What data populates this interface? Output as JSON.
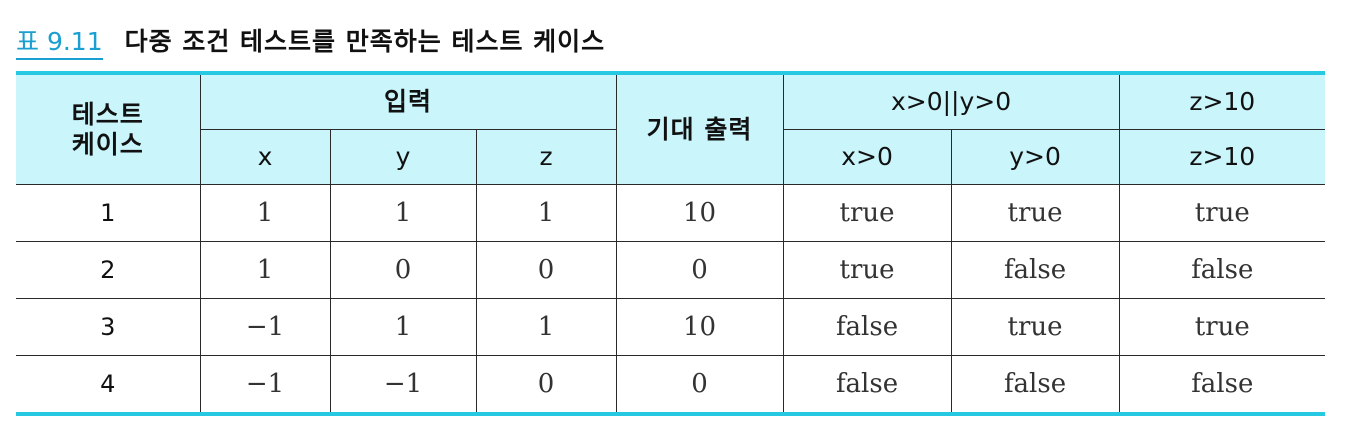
{
  "caption": {
    "label": "표 9.11",
    "title": "다중 조건 테스트를 만족하는 테스트 케이스"
  },
  "header": {
    "test_case_line1": "테스트",
    "test_case_line2": "케이스",
    "input": "입력",
    "input_x": "x",
    "input_y": "y",
    "input_z": "z",
    "expected_output": "기대 출력",
    "condition_or": "x>0||y>0",
    "condition_x": "x>0",
    "condition_y": "y>0",
    "condition_z_group": "z>10",
    "condition_z": "z>10"
  },
  "rows": [
    {
      "case": "1",
      "x": "1",
      "y": "1",
      "z": "1",
      "expected": "10",
      "cx": "true",
      "cy": "true",
      "cz": "true"
    },
    {
      "case": "2",
      "x": "1",
      "y": "0",
      "z": "0",
      "expected": "0",
      "cx": "true",
      "cy": "false",
      "cz": "false"
    },
    {
      "case": "3",
      "x": "−1",
      "y": "1",
      "z": "1",
      "expected": "10",
      "cx": "false",
      "cy": "true",
      "cz": "true"
    },
    {
      "case": "4",
      "x": "−1",
      "y": "−1",
      "z": "0",
      "expected": "0",
      "cx": "false",
      "cy": "false",
      "cz": "false"
    }
  ],
  "colors": {
    "accent": "#1a9fd0",
    "rule": "#27c8e2",
    "header_background": "#c9f5fb"
  }
}
